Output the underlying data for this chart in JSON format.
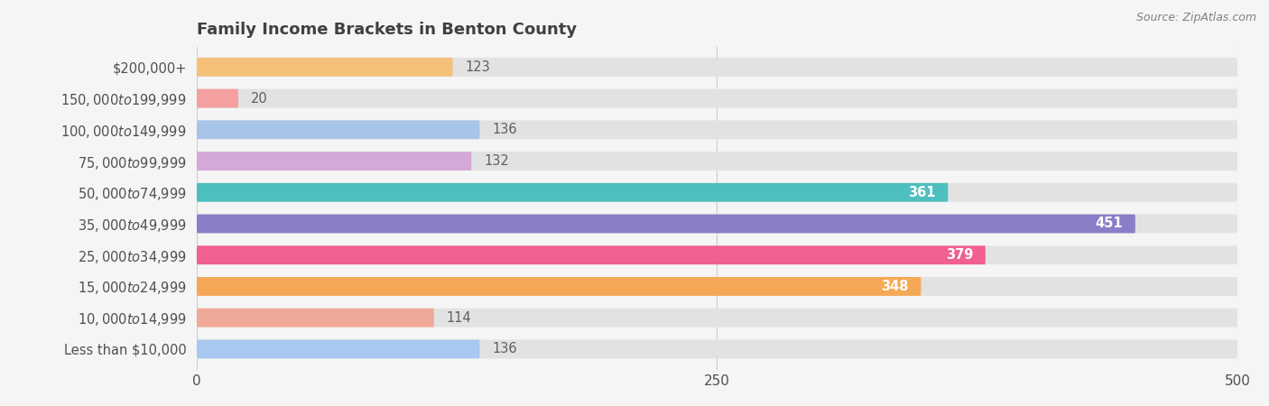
{
  "title": "Family Income Brackets in Benton County",
  "source": "Source: ZipAtlas.com",
  "categories": [
    "Less than $10,000",
    "$10,000 to $14,999",
    "$15,000 to $24,999",
    "$25,000 to $34,999",
    "$35,000 to $49,999",
    "$50,000 to $74,999",
    "$75,000 to $99,999",
    "$100,000 to $149,999",
    "$150,000 to $199,999",
    "$200,000+"
  ],
  "values": [
    123,
    20,
    136,
    132,
    361,
    451,
    379,
    348,
    114,
    136
  ],
  "bar_colors": [
    "#F5C07A",
    "#F4A0A0",
    "#A8C4E8",
    "#D4A8D8",
    "#4DBFBF",
    "#8B7EC8",
    "#F06090",
    "#F5A855",
    "#F0A898",
    "#A8C8F0"
  ],
  "xlim": [
    0,
    500
  ],
  "xticks": [
    0,
    250,
    500
  ],
  "background_color": "#f5f5f5",
  "bar_background_color": "#e2e2e2",
  "title_color": "#404040",
  "label_color": "#505050",
  "value_color_inside": "#ffffff",
  "value_color_outside": "#606060",
  "value_threshold": 150,
  "bar_height": 0.6,
  "title_fontsize": 13,
  "label_fontsize": 10.5,
  "value_fontsize": 10.5,
  "tick_fontsize": 11
}
